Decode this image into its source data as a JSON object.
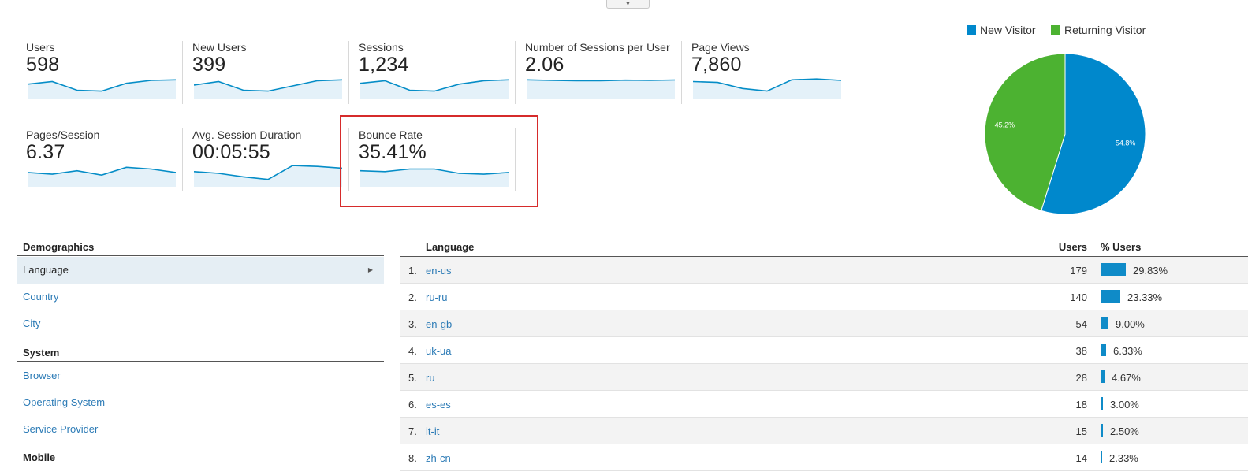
{
  "colors": {
    "accent": "#058dc7",
    "new_visitor": "#0088cc",
    "returning_visitor": "#4cb231",
    "link": "#2c7bb6",
    "highlight": "#d62b2b"
  },
  "collapse_icon": "chevron-down-icon",
  "metrics": [
    {
      "label": "Users",
      "value": "598",
      "spark": [
        0.4,
        0.25,
        0.75,
        0.8,
        0.35,
        0.18,
        0.15
      ]
    },
    {
      "label": "New Users",
      "value": "399",
      "spark": [
        0.45,
        0.25,
        0.75,
        0.8,
        0.5,
        0.2,
        0.15
      ]
    },
    {
      "label": "Sessions",
      "value": "1,234",
      "spark": [
        0.35,
        0.2,
        0.75,
        0.8,
        0.4,
        0.2,
        0.15
      ]
    },
    {
      "label": "Number of Sessions per User",
      "value": "2.06",
      "spark": [
        0.15,
        0.18,
        0.2,
        0.2,
        0.17,
        0.18,
        0.16
      ]
    },
    {
      "label": "Page Views",
      "value": "7,860",
      "spark": [
        0.25,
        0.3,
        0.65,
        0.8,
        0.15,
        0.1,
        0.18
      ]
    },
    {
      "label": "Pages/Session",
      "value": "6.37",
      "spark": [
        0.45,
        0.55,
        0.35,
        0.6,
        0.15,
        0.25,
        0.45
      ]
    },
    {
      "label": "Avg. Session Duration",
      "value": "00:05:55",
      "spark": [
        0.4,
        0.5,
        0.7,
        0.85,
        0.05,
        0.1,
        0.2
      ]
    },
    {
      "label": "Bounce Rate",
      "value": "35.41%",
      "spark": [
        0.35,
        0.4,
        0.25,
        0.25,
        0.5,
        0.55,
        0.45
      ]
    }
  ],
  "chart_data": {
    "type": "pie",
    "legend_position": "top",
    "slices": [
      {
        "name": "New Visitor",
        "value": 54.8,
        "label": "54.8%",
        "color": "#0088cc"
      },
      {
        "name": "Returning Visitor",
        "value": 45.2,
        "label": "45.2%",
        "color": "#4cb231"
      }
    ]
  },
  "nav": {
    "sections": [
      {
        "title": "Demographics",
        "items": [
          "Language",
          "Country",
          "City"
        ]
      },
      {
        "title": "System",
        "items": [
          "Browser",
          "Operating System",
          "Service Provider"
        ]
      },
      {
        "title": "Mobile",
        "items": []
      }
    ]
  },
  "table": {
    "headers": {
      "language": "Language",
      "users": "Users",
      "pct_users": "% Users"
    },
    "rows": [
      {
        "rank": "1.",
        "language": "en-us",
        "users": "179",
        "pct": "29.83%",
        "share": 0.2983
      },
      {
        "rank": "2.",
        "language": "ru-ru",
        "users": "140",
        "pct": "23.33%",
        "share": 0.2333
      },
      {
        "rank": "3.",
        "language": "en-gb",
        "users": "54",
        "pct": "9.00%",
        "share": 0.09
      },
      {
        "rank": "4.",
        "language": "uk-ua",
        "users": "38",
        "pct": "6.33%",
        "share": 0.0633
      },
      {
        "rank": "5.",
        "language": "ru",
        "users": "28",
        "pct": "4.67%",
        "share": 0.0467
      },
      {
        "rank": "6.",
        "language": "es-es",
        "users": "18",
        "pct": "3.00%",
        "share": 0.03
      },
      {
        "rank": "7.",
        "language": "it-it",
        "users": "15",
        "pct": "2.50%",
        "share": 0.025
      },
      {
        "rank": "8.",
        "language": "zh-cn",
        "users": "14",
        "pct": "2.33%",
        "share": 0.0233
      }
    ]
  }
}
